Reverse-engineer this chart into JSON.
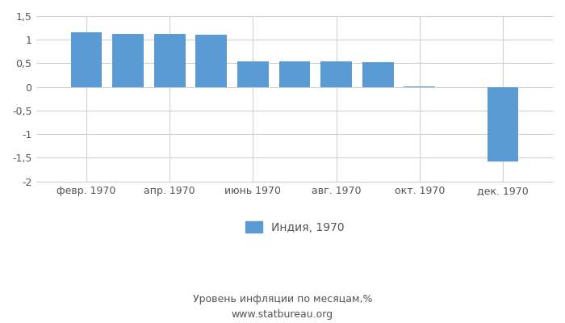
{
  "months_all": [
    2,
    3,
    4,
    5,
    6,
    7,
    8,
    9,
    10,
    12
  ],
  "values": [
    1.15,
    1.13,
    1.12,
    1.1,
    0.54,
    0.54,
    0.54,
    0.53,
    0.02,
    -1.58
  ],
  "bar_color": "#5b9bd5",
  "x_tick_positions": [
    2,
    4,
    6,
    8,
    10,
    12
  ],
  "x_tick_labels": [
    "февр. 1970",
    "апр. 1970",
    "июнь 1970",
    "авг. 1970",
    "окт. 1970",
    "дек. 1970"
  ],
  "ylim": [
    -2.0,
    1.5
  ],
  "yticks": [
    -2,
    -1.5,
    -1,
    -0.5,
    0,
    0.5,
    1,
    1.5
  ],
  "ytick_labels": [
    "-2",
    "-1,5",
    "-1",
    "-0,5",
    "0",
    "0,5",
    "1",
    "1,5"
  ],
  "legend_label": "Индия, 1970",
  "footer_text": "Уровень инфляции по месяцам,%\nwww.statbureau.org",
  "background_color": "#ffffff",
  "grid_color": "#d0d0d0",
  "text_color": "#555555",
  "bar_width": 0.75
}
